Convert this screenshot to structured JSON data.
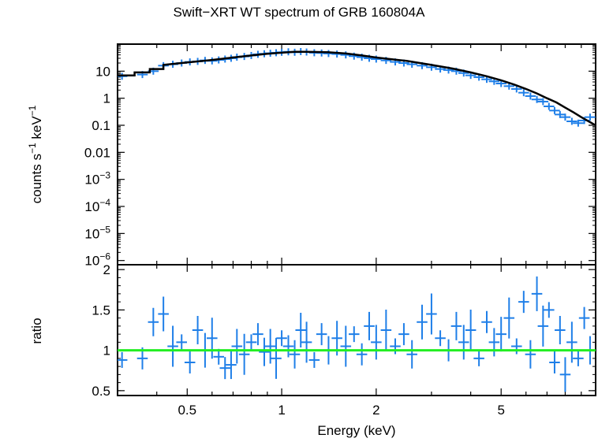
{
  "chart_data": [
    {
      "type": "scatter",
      "panel": "spectrum",
      "title": "Swift−XRT WT spectrum of GRB 160804A",
      "ylabel_main": "counts s",
      "ylabel_exp1": "−1",
      "ylabel_mid": " keV",
      "ylabel_exp2": "−1",
      "x_scale": "log",
      "y_scale": "log",
      "xlim": [
        0.3,
        10
      ],
      "ylim": [
        7e-07,
        100
      ],
      "y_ticks": [
        {
          "value": 10,
          "base": "10",
          "exp": ""
        },
        {
          "value": 1,
          "base": "1",
          "exp": ""
        },
        {
          "value": 0.1,
          "base": "0.1",
          "exp": ""
        },
        {
          "value": 0.01,
          "base": "0.01",
          "exp": ""
        },
        {
          "value": 0.001,
          "base": "10",
          "exp": "−3"
        },
        {
          "value": 0.0001,
          "base": "10",
          "exp": "−4"
        },
        {
          "value": 1e-05,
          "base": "10",
          "exp": "−5"
        },
        {
          "value": 1e-06,
          "base": "10",
          "exp": "−6"
        }
      ],
      "series": [
        {
          "role": "data",
          "color": "#1f7fe8",
          "x": [
            0.31,
            0.36,
            0.39,
            0.42,
            0.45,
            0.48,
            0.51,
            0.54,
            0.57,
            0.6,
            0.63,
            0.66,
            0.69,
            0.72,
            0.76,
            0.8,
            0.84,
            0.88,
            0.92,
            0.96,
            1.0,
            1.05,
            1.1,
            1.15,
            1.2,
            1.27,
            1.34,
            1.41,
            1.5,
            1.6,
            1.7,
            1.8,
            1.9,
            2.0,
            2.15,
            2.3,
            2.45,
            2.6,
            2.8,
            3.0,
            3.2,
            3.4,
            3.6,
            3.8,
            4.0,
            4.25,
            4.5,
            4.75,
            5.0,
            5.3,
            5.6,
            5.9,
            6.2,
            6.5,
            6.8,
            7.1,
            7.4,
            7.7,
            8.0,
            8.4,
            8.8,
            9.2,
            9.6
          ],
          "y": [
            6.5,
            7.5,
            10,
            16,
            18,
            20,
            22,
            23,
            25,
            24,
            26,
            28,
            30,
            33,
            35,
            38,
            42,
            44,
            46,
            48,
            50,
            52,
            50,
            53,
            51,
            48,
            47,
            45,
            43,
            40,
            36,
            33,
            30,
            28,
            25,
            22,
            20,
            18,
            16,
            14,
            12,
            11,
            10,
            8.5,
            7,
            6,
            5,
            4.2,
            3.5,
            2.8,
            2.2,
            1.6,
            1.2,
            0.9,
            0.75,
            0.5,
            0.35,
            0.25,
            0.2,
            0.14,
            0.12,
            0.15,
            0.2
          ]
        },
        {
          "role": "model",
          "color": "#000000",
          "x": [
            0.3,
            0.34,
            0.34,
            0.38,
            0.38,
            0.42,
            0.42,
            0.5,
            0.6,
            0.7,
            0.8,
            0.9,
            1.0,
            1.1,
            1.2,
            1.4,
            1.6,
            1.8,
            2.0,
            2.5,
            3.0,
            3.5,
            4.0,
            4.5,
            5.0,
            5.5,
            6.0,
            6.5,
            7.0,
            7.5,
            8.0,
            8.5,
            9.0,
            9.5,
            10.0
          ],
          "y": [
            7,
            7,
            9,
            9,
            12,
            12,
            17,
            21,
            26,
            32,
            38,
            44,
            48,
            52,
            52,
            50,
            45,
            38,
            32,
            24,
            17,
            12.5,
            9,
            6.5,
            4.6,
            3.2,
            2.2,
            1.5,
            1.0,
            0.7,
            0.45,
            0.3,
            0.2,
            0.14,
            0.1
          ]
        }
      ]
    },
    {
      "type": "scatter",
      "panel": "ratio",
      "xlabel": "Energy (keV)",
      "ylabel": "ratio",
      "x_scale": "log",
      "xlim": [
        0.3,
        10
      ],
      "ylim": [
        0.44,
        2.06
      ],
      "x_ticks": [
        {
          "value": 0.5,
          "label": "0.5"
        },
        {
          "value": 1,
          "label": "1"
        },
        {
          "value": 2,
          "label": "2"
        },
        {
          "value": 5,
          "label": "5"
        }
      ],
      "y_ticks": [
        {
          "value": 0.5,
          "label": "0.5"
        },
        {
          "value": 1,
          "label": "1"
        },
        {
          "value": 1.5,
          "label": "1.5"
        },
        {
          "value": 2,
          "label": "2"
        }
      ],
      "reference_line": {
        "y": 1,
        "color": "#22ee22"
      },
      "series": [
        {
          "role": "data",
          "color": "#1f7fe8",
          "x": [
            0.31,
            0.36,
            0.39,
            0.42,
            0.45,
            0.48,
            0.51,
            0.54,
            0.57,
            0.6,
            0.63,
            0.66,
            0.69,
            0.72,
            0.76,
            0.8,
            0.84,
            0.88,
            0.92,
            0.96,
            1.0,
            1.05,
            1.1,
            1.15,
            1.2,
            1.27,
            1.34,
            1.41,
            1.5,
            1.6,
            1.7,
            1.8,
            1.9,
            2.0,
            2.15,
            2.3,
            2.45,
            2.6,
            2.8,
            3.0,
            3.2,
            3.4,
            3.6,
            3.8,
            4.0,
            4.25,
            4.5,
            4.75,
            5.0,
            5.3,
            5.6,
            5.9,
            6.2,
            6.5,
            6.8,
            7.1,
            7.4,
            7.7,
            8.0,
            8.4,
            8.8,
            9.2,
            9.6
          ],
          "y": [
            0.88,
            0.9,
            1.35,
            1.45,
            1.05,
            1.1,
            0.85,
            1.25,
            1.0,
            1.15,
            0.92,
            0.78,
            0.82,
            1.05,
            0.95,
            1.1,
            1.2,
            0.98,
            1.05,
            0.9,
            1.15,
            1.05,
            0.95,
            1.25,
            1.1,
            0.88,
            1.2,
            1.0,
            1.15,
            1.05,
            1.2,
            0.95,
            1.3,
            1.1,
            1.25,
            1.05,
            1.2,
            0.95,
            1.35,
            1.45,
            1.15,
            1.0,
            1.3,
            1.1,
            1.25,
            0.9,
            1.35,
            1.1,
            1.2,
            1.4,
            1.05,
            1.6,
            0.95,
            1.7,
            1.3,
            1.5,
            0.85,
            1.25,
            0.7,
            1.1,
            0.9,
            1.4,
            1.0
          ]
        }
      ]
    }
  ]
}
